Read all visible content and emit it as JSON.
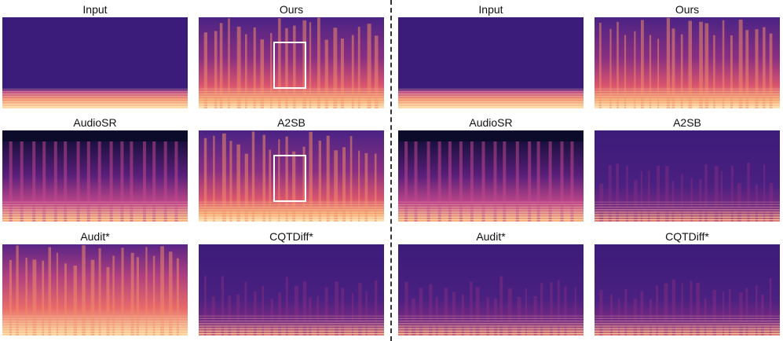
{
  "figure": {
    "left_group": {
      "panels": [
        {
          "id": "input",
          "title": "Input",
          "style": "lowband",
          "highlight": false
        },
        {
          "id": "ours",
          "title": "Ours",
          "style": "full",
          "highlight": true
        },
        {
          "id": "audiosr",
          "title": "AudioSR",
          "style": "dark_bars",
          "highlight": false
        },
        {
          "id": "a2sb",
          "title": "A2SB",
          "style": "full",
          "highlight": true
        },
        {
          "id": "audit",
          "title": "Audit*",
          "style": "bright",
          "highlight": false
        },
        {
          "id": "cqtdiff",
          "title": "CQTDiff*",
          "style": "weak",
          "highlight": false
        }
      ]
    },
    "right_group": {
      "panels": [
        {
          "id": "input",
          "title": "Input",
          "style": "lowband",
          "highlight": false
        },
        {
          "id": "ours",
          "title": "Ours",
          "style": "full",
          "highlight": false
        },
        {
          "id": "audiosr",
          "title": "AudioSR",
          "style": "dark_bars",
          "highlight": false
        },
        {
          "id": "a2sb",
          "title": "A2SB",
          "style": "weak",
          "highlight": false
        },
        {
          "id": "audit",
          "title": "Audit*",
          "style": "weak",
          "highlight": false
        },
        {
          "id": "cqtdiff",
          "title": "CQTDiff*",
          "style": "weak",
          "highlight": false
        }
      ]
    },
    "colors": {
      "base": "#3a1a78",
      "dark": "#0d0b2a",
      "warm": "#f6c38f",
      "hot": "#fde6b8",
      "box": "#ffffff"
    }
  }
}
